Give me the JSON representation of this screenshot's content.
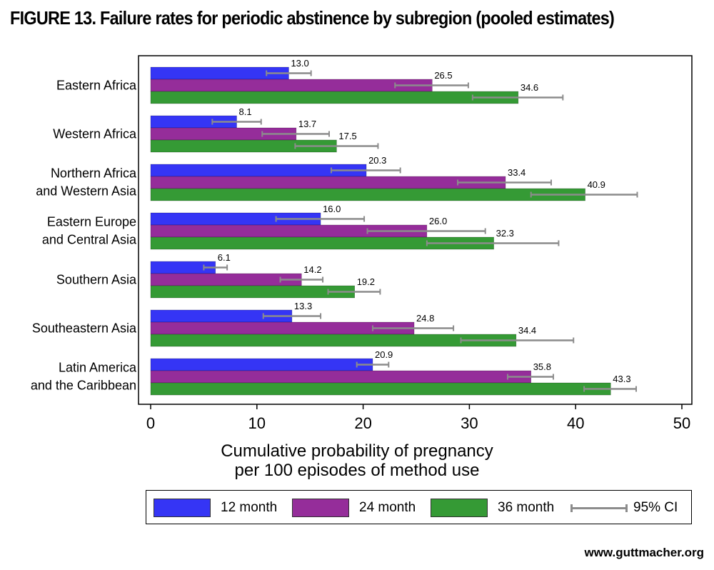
{
  "title": "FIGURE 13. Failure rates for periodic abstinence by subregion (pooled estimates)",
  "source": "www.guttmacher.org",
  "colors": {
    "12 month": "#3535f5",
    "24 month": "#952d9a",
    "36 month": "#359a35",
    "ci": "#8c8c8c"
  },
  "chart_data": {
    "type": "bar",
    "orientation": "horizontal",
    "title": "FIGURE 13. Failure rates for periodic abstinence by subregion (pooled estimates)",
    "xlabel_line1": "Cumulative probability of pregnancy",
    "xlabel_line2": "per 100 episodes of method use",
    "xlim": [
      0,
      50
    ],
    "xticks": [
      0,
      10,
      20,
      30,
      40,
      50
    ],
    "grid": false,
    "legend_position": "bottom",
    "categories": [
      [
        "Eastern Africa"
      ],
      [
        "Western Africa"
      ],
      [
        "Northern Africa",
        "and Western Asia"
      ],
      [
        "Eastern Europe",
        "and Central Asia"
      ],
      [
        "Southern Asia"
      ],
      [
        "Southeastern Asia"
      ],
      [
        "Latin America",
        "and the Caribbean"
      ]
    ],
    "series": [
      {
        "name": "12 month",
        "values": [
          13.0,
          8.1,
          20.3,
          16.0,
          6.1,
          13.3,
          20.9
        ],
        "ci_low": [
          10.9,
          5.8,
          17.0,
          11.8,
          5.0,
          10.6,
          19.4
        ],
        "ci_high": [
          15.1,
          10.4,
          23.5,
          20.1,
          7.2,
          16.0,
          22.4
        ]
      },
      {
        "name": "24 month",
        "values": [
          26.5,
          13.7,
          33.4,
          26.0,
          14.2,
          24.8,
          35.8
        ],
        "ci_low": [
          23.0,
          10.5,
          28.9,
          20.4,
          12.2,
          20.9,
          33.6
        ],
        "ci_high": [
          29.9,
          16.8,
          37.7,
          31.5,
          16.2,
          28.5,
          37.9
        ]
      },
      {
        "name": "36 month",
        "values": [
          34.6,
          17.5,
          40.9,
          32.3,
          19.2,
          34.4,
          43.3
        ],
        "ci_low": [
          30.3,
          13.6,
          35.8,
          26.0,
          16.7,
          29.2,
          40.8
        ],
        "ci_high": [
          38.8,
          21.4,
          45.8,
          38.4,
          21.6,
          39.8,
          45.7
        ]
      }
    ],
    "ci_legend_label": "95% CI"
  }
}
